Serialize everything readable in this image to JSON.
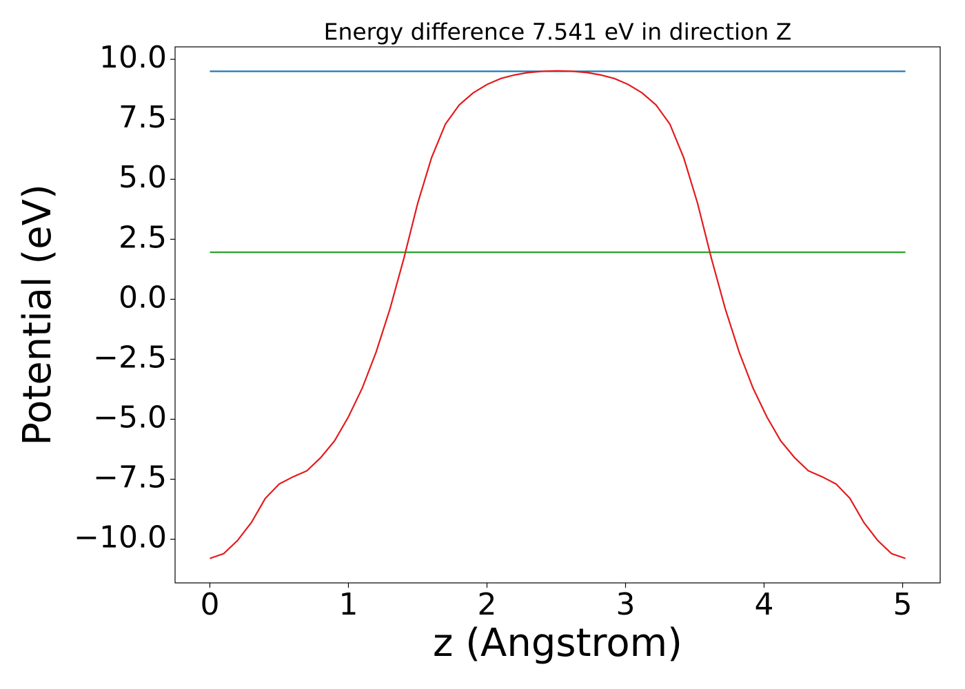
{
  "chart_data": {
    "type": "line",
    "title": "Energy difference 7.541 eV in direction Z",
    "xlabel": "z (Angstrom)",
    "ylabel": "Potential (eV)",
    "xlim": [
      -0.251,
      5.271
    ],
    "ylim": [
      -11.82,
      10.52
    ],
    "xticks": [
      0,
      1,
      2,
      3,
      4,
      5
    ],
    "yticks": [
      {
        "value": -10,
        "label": "−10.0"
      },
      {
        "value": -7.5,
        "label": "−7.5"
      },
      {
        "value": -5,
        "label": "−5.0"
      },
      {
        "value": -2.5,
        "label": "−2.5"
      },
      {
        "value": 0,
        "label": "0.0"
      },
      {
        "value": 2.5,
        "label": "2.5"
      },
      {
        "value": 5,
        "label": "5.0"
      },
      {
        "value": 7.5,
        "label": "7.5"
      },
      {
        "value": 10,
        "label": "10.0"
      }
    ],
    "grid": false,
    "series": [
      {
        "color": "#1f77b4",
        "x": [
          0,
          5.02
        ],
        "values": [
          9.5,
          9.5
        ]
      },
      {
        "color": "#2ca02c",
        "x": [
          0,
          5.02
        ],
        "values": [
          1.96,
          1.96
        ]
      },
      {
        "color": "#e31a1c",
        "x": [
          0,
          0.1,
          0.2,
          0.3,
          0.4,
          0.5,
          0.6,
          0.7,
          0.8,
          0.9,
          1.0,
          1.1,
          1.2,
          1.3,
          1.4,
          1.5,
          1.6,
          1.7,
          1.8,
          1.9,
          2.0,
          2.1,
          2.2,
          2.3,
          2.4,
          2.51,
          2.62,
          2.72,
          2.82,
          2.92,
          3.02,
          3.12,
          3.22,
          3.32,
          3.42,
          3.52,
          3.62,
          3.72,
          3.82,
          3.92,
          4.02,
          4.12,
          4.22,
          4.32,
          4.42,
          4.52,
          4.62,
          4.72,
          4.82,
          4.92,
          5.02
        ],
        "values": [
          -10.8,
          -10.6,
          -10.05,
          -9.3,
          -8.3,
          -7.7,
          -7.4,
          -7.15,
          -6.6,
          -5.9,
          -4.9,
          -3.7,
          -2.2,
          -0.4,
          1.7,
          4.0,
          5.9,
          7.3,
          8.1,
          8.6,
          8.95,
          9.2,
          9.35,
          9.45,
          9.5,
          9.52,
          9.5,
          9.45,
          9.35,
          9.2,
          8.95,
          8.6,
          8.1,
          7.3,
          5.9,
          4.0,
          1.7,
          -0.4,
          -2.2,
          -3.7,
          -4.9,
          -5.9,
          -6.6,
          -7.15,
          -7.4,
          -7.7,
          -8.3,
          -9.3,
          -10.05,
          -10.6,
          -10.8
        ]
      }
    ]
  }
}
